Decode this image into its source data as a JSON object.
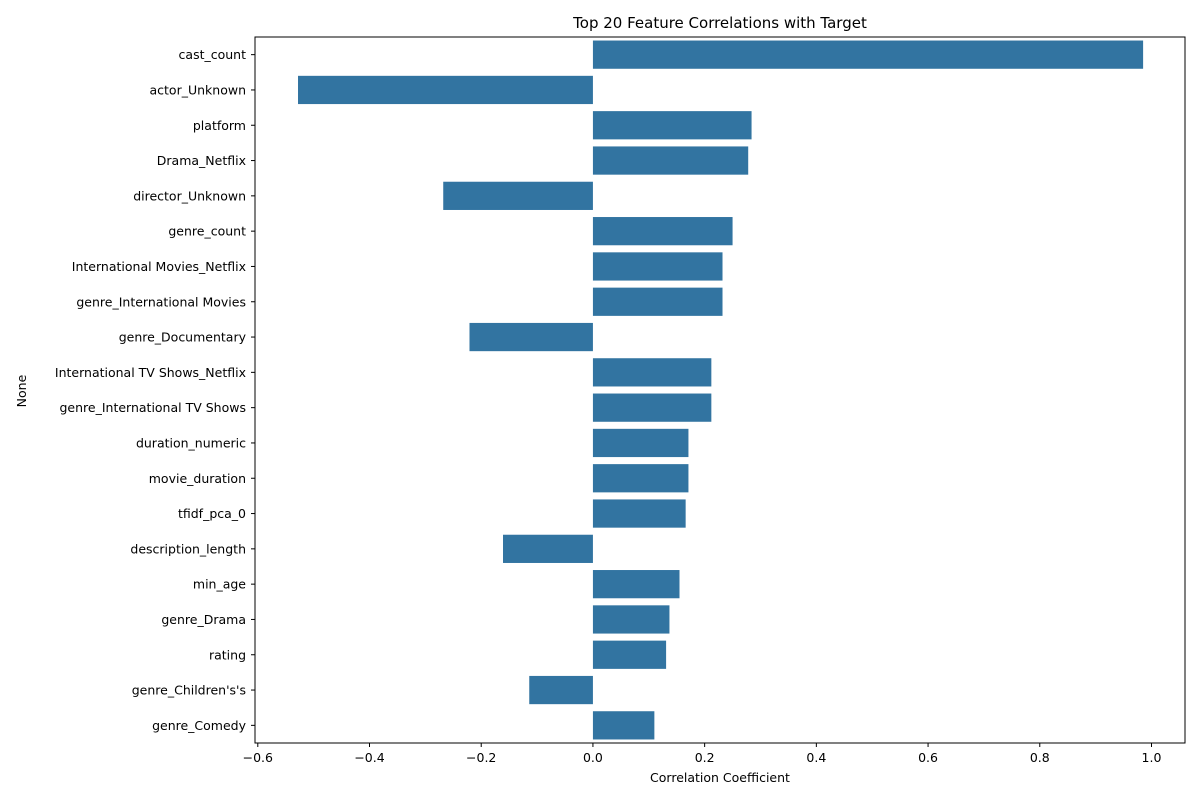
{
  "chart_data": {
    "type": "bar",
    "orientation": "horizontal",
    "title": "Top 20 Feature Correlations with Target",
    "xlabel": "Correlation Coefficient",
    "ylabel": "None",
    "xlim": [
      -0.605,
      1.06
    ],
    "xticks": [
      -0.6,
      -0.4,
      -0.2,
      0.0,
      0.2,
      0.4,
      0.6,
      0.8,
      1.0
    ],
    "xtick_labels": [
      "−0.6",
      "−0.4",
      "−0.2",
      "0.0",
      "0.2",
      "0.4",
      "0.6",
      "0.8",
      "1.0"
    ],
    "grid": false,
    "bar_color": "#3274a1",
    "categories": [
      "cast_count",
      "actor_Unknown",
      "platform",
      "Drama_Netflix",
      "director_Unknown",
      "genre_count",
      "International Movies_Netflix",
      "genre_International Movies",
      "genre_Documentary",
      "International TV Shows_Netflix",
      "genre_International TV Shows",
      "duration_numeric",
      "movie_duration",
      "tfidf_pca_0",
      "description_length",
      "min_age",
      "genre_Drama",
      "rating",
      "genre_Children's's",
      "genre_Comedy"
    ],
    "values": [
      0.985,
      -0.528,
      0.284,
      0.278,
      -0.268,
      0.25,
      0.232,
      0.232,
      -0.221,
      0.212,
      0.212,
      0.171,
      0.171,
      0.166,
      -0.161,
      0.155,
      0.137,
      0.131,
      -0.114,
      0.11
    ]
  }
}
